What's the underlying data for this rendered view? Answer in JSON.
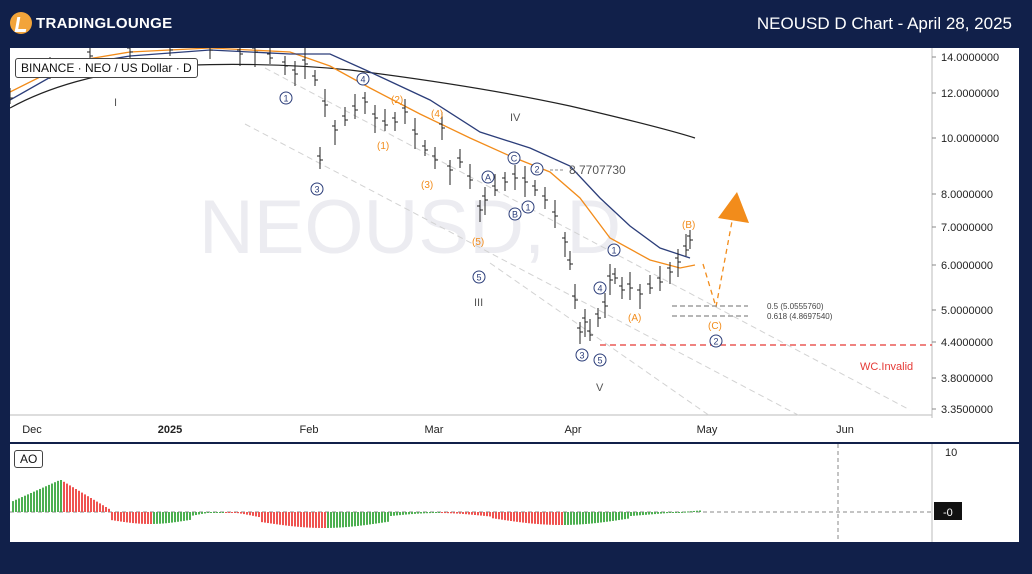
{
  "header": {
    "logo_text": "TradingLounge",
    "title": "NEOUSD D Chart - April 28, 2025"
  },
  "main": {
    "symbol_label": "BINANCE · NEO / US Dollar · D",
    "watermark": "NEOUSD, D"
  },
  "ao": {
    "label": "AO"
  },
  "chart_data": {
    "type": "candlestick",
    "y_axis": {
      "scale": "log",
      "ticks": [
        "14.0000000",
        "12.0000000",
        "10.0000000",
        "8.0000000",
        "7.0000000",
        "6.0000000",
        "5.0000000",
        "4.4000000",
        "3.8000000",
        "3.3500000"
      ],
      "tick_values": [
        14,
        12,
        10,
        8,
        7,
        6,
        5,
        4.4,
        3.8,
        3.35
      ]
    },
    "x_axis": {
      "ticks": [
        "Dec",
        "2025",
        "Feb",
        "Mar",
        "Apr",
        "May",
        "Jun"
      ]
    },
    "price_annotation": "8.7707730",
    "fib_levels": [
      {
        "label": "0.5 (5.0555760)",
        "value": 5.055576
      },
      {
        "label": "0.618 (4.8697540)",
        "value": 4.869754
      }
    ],
    "invalidation": {
      "label": "WC.Invalid",
      "value": 4.3,
      "color": "#e53935"
    },
    "wave_labels": {
      "roman": [
        "I",
        "IV",
        "III",
        "V"
      ],
      "orange": [
        "(2)",
        "(4)",
        "(1)",
        "(3)",
        "(5)",
        "(B)",
        "(A)",
        "(C)"
      ],
      "circled_navy": [
        "4",
        "1",
        "3",
        "C",
        "2",
        "A",
        "1",
        "B",
        "5",
        "1",
        "4",
        "3",
        "5",
        "2"
      ]
    },
    "ao_axis": {
      "ticks": [
        "10",
        "-0"
      ]
    },
    "colors": {
      "orange": "#f28c1b",
      "navy": "#2c3e7a",
      "bull_bar": "#4caf50",
      "bear_bar": "#ef5350",
      "background": "#11204a"
    }
  }
}
